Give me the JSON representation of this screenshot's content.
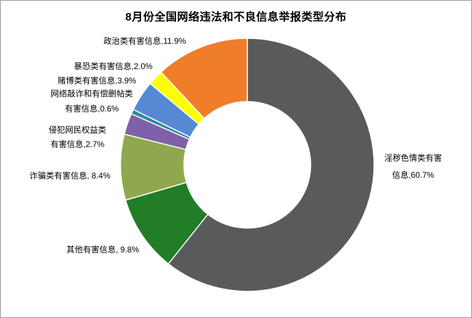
{
  "title": "8月份全国网络违法和不良信息举报类型分布",
  "chart_data": {
    "type": "pie",
    "subtype": "doughnut",
    "title": "8月份全国网络违法和不良信息举报类型分布",
    "unit": "%",
    "start_angle_deg": 0,
    "direction": "clockwise",
    "hole_ratio": 0.5,
    "legend": "none",
    "categories": [
      "淫秽色情类有害信息",
      "其他有害信息",
      "诈骗类有害信息",
      "侵犯网民权益类有害信息",
      "网络敲诈和有偿删帖类有害信息",
      "赌博类有害信息",
      "暴恐类有害信息",
      "政治类有害信息"
    ],
    "values": [
      60.7,
      9.8,
      8.4,
      2.7,
      0.6,
      3.9,
      2.0,
      11.9
    ],
    "colors": [
      "#595A5C",
      "#217D26",
      "#90A84D",
      "#7E61A8",
      "#33899C",
      "#5589D2",
      "#FFFF00",
      "#EF7D2A"
    ],
    "slice_keys": [
      "porn",
      "other",
      "fraud",
      "rights",
      "extortion",
      "gambling",
      "terror",
      "political"
    ],
    "separator_color": "#ffffff",
    "labels": {
      "political": {
        "text": "政治类有害信息,11.9%"
      },
      "terror": {
        "text": "暴恐类有害信息,2.0%"
      },
      "gambling": {
        "text": "赌博类有害信息,3.9%"
      },
      "extortion": {
        "line1": "网络敲诈和有偿删帖类",
        "line2": "有害信息,0.6%"
      },
      "rights": {
        "line1": "侵犯网民权益类",
        "line2": "有害信息,2.7%"
      },
      "fraud": {
        "text": "诈骗类有害信息, 8.4%"
      },
      "other": {
        "text": "其他有害信息, 9.8%"
      },
      "porn": {
        "line1": "淫秽色情类有害",
        "line2": "信息,60.7%"
      }
    }
  }
}
